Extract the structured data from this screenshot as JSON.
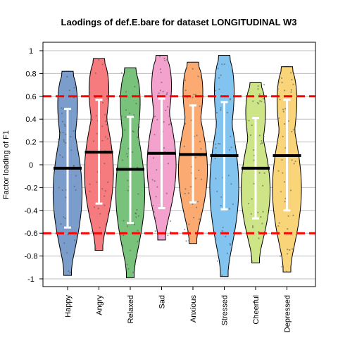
{
  "chart_data": {
    "type": "violin",
    "title": "Laodings of def.E.bare for dataset LONGITUDINAL W3",
    "xlabel": "",
    "ylabel": "Factor loading of F1",
    "ylim": [
      -1.05,
      1.05
    ],
    "yticks": [
      1,
      0.8,
      0.6,
      0.4,
      0.2,
      0,
      -0.2,
      -0.4,
      -0.6,
      -0.8,
      -1
    ],
    "ytick_labels": [
      "1",
      "0.8",
      "0.6",
      "0.4",
      "0.2",
      "0",
      "-0.2",
      "-0.4",
      "-0.6",
      "-0.8",
      "-1"
    ],
    "grid": true,
    "threshold_lines": [
      0.6,
      -0.6
    ],
    "threshold_color": "#ff0000",
    "categories": [
      "Happy",
      "Angry",
      "Relaxed",
      "Sad",
      "Anxious",
      "Stressed",
      "Cheerful",
      "Depressed"
    ],
    "series": [
      {
        "category": "Happy",
        "color": "#7b9dcc",
        "mean": -0.03,
        "sd_upper": 0.49,
        "sd_lower": -0.55,
        "min": -0.97,
        "max": 0.82
      },
      {
        "category": "Angry",
        "color": "#f67b7e",
        "mean": 0.11,
        "sd_upper": 0.57,
        "sd_lower": -0.34,
        "min": -0.75,
        "max": 0.93
      },
      {
        "category": "Relaxed",
        "color": "#79c27c",
        "mean": -0.04,
        "sd_upper": 0.42,
        "sd_lower": -0.51,
        "min": -0.99,
        "max": 0.85
      },
      {
        "category": "Sad",
        "color": "#f3a2cd",
        "mean": 0.1,
        "sd_upper": 0.58,
        "sd_lower": -0.38,
        "min": -0.66,
        "max": 0.96
      },
      {
        "category": "Anxious",
        "color": "#fbaa72",
        "mean": 0.09,
        "sd_upper": 0.52,
        "sd_lower": -0.33,
        "min": -0.69,
        "max": 0.9
      },
      {
        "category": "Stressed",
        "color": "#82c3f0",
        "mean": 0.08,
        "sd_upper": 0.55,
        "sd_lower": -0.39,
        "min": -0.98,
        "max": 0.96
      },
      {
        "category": "Cheerful",
        "color": "#cde487",
        "mean": -0.03,
        "sd_upper": 0.41,
        "sd_lower": -0.47,
        "min": -0.86,
        "max": 0.72
      },
      {
        "category": "Depressed",
        "color": "#f9d478",
        "mean": 0.08,
        "sd_upper": 0.57,
        "sd_lower": -0.4,
        "min": -0.94,
        "max": 0.86
      }
    ]
  }
}
